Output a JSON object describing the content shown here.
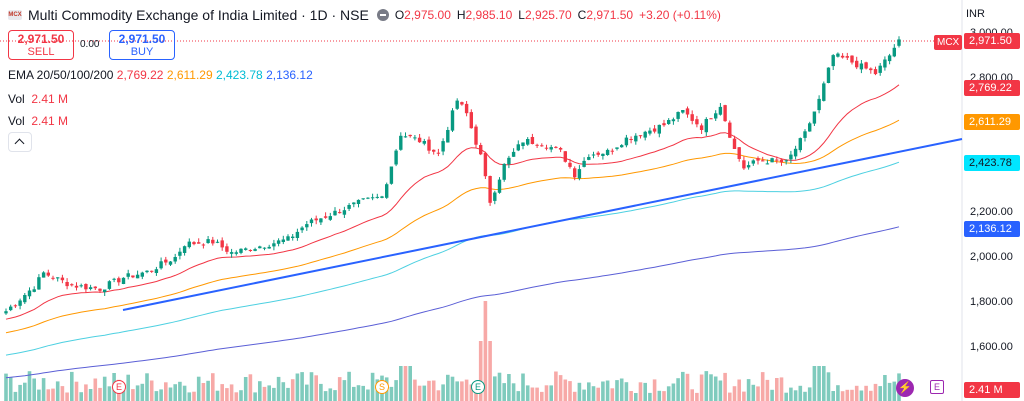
{
  "header": {
    "title": "Multi Commodity Exchange of India Limited · 1D · NSE",
    "ohlc": {
      "o_label": "O",
      "o": "2,975.00",
      "h_label": "H",
      "h": "2,985.10",
      "l_label": "L",
      "l": "2,925.70",
      "c_label": "C",
      "c": "2,971.50",
      "change": "+3.20 (+0.11%)"
    },
    "logo_text": "MCX"
  },
  "trade": {
    "sell_price": "2,971.50",
    "sell_label": "SELL",
    "spread": "0.00",
    "buy_price": "2,971.50",
    "buy_label": "BUY"
  },
  "indicators": {
    "ema_label": "EMA 20/50/100/200",
    "ema20": "2,769.22",
    "ema50": "2,611.29",
    "ema100": "2,423.78",
    "ema200": "2,136.12",
    "vol1_label": "Vol",
    "vol1_value": "2.41 M",
    "vol2_label": "Vol",
    "vol2_value": "2.41 M"
  },
  "currency": "INR",
  "symbol_tag": "MCX",
  "price_labels": {
    "last": "2,971.50",
    "ema20": "2,769.22",
    "ema50": "2,611.29",
    "ema100": "2,423.78",
    "ema200": "2,136.12",
    "volume": "2.41 M"
  },
  "markers": {
    "e": "E",
    "s": "S",
    "flash": "⚡"
  },
  "colors": {
    "up": "#089981",
    "down": "#f23645",
    "ema20": "#f23645",
    "ema50": "#ff9800",
    "ema100": "#4dd0e1",
    "ema200": "#5b5fd6",
    "trend": "#2962ff",
    "ema100_label": "#00e5ff"
  },
  "chart_data": {
    "type": "candlestick",
    "y_axis": {
      "ticks": [
        3000,
        2800,
        2200,
        2000,
        1800,
        1600
      ],
      "tick_labels": [
        "3,000.00",
        "2,800.00",
        "2,200.00",
        "2,000.00",
        "1,800.00",
        "1,600.00"
      ],
      "range": [
        1540,
        3020
      ]
    },
    "close_waypoints": [
      [
        0,
        1760
      ],
      [
        6,
        1870
      ],
      [
        8,
        1930
      ],
      [
        14,
        1875
      ],
      [
        20,
        1860
      ],
      [
        25,
        1910
      ],
      [
        30,
        1935
      ],
      [
        36,
        2000
      ],
      [
        38,
        2060
      ],
      [
        44,
        2070
      ],
      [
        48,
        2020
      ],
      [
        54,
        2050
      ],
      [
        60,
        2080
      ],
      [
        64,
        2150
      ],
      [
        70,
        2200
      ],
      [
        76,
        2250
      ],
      [
        80,
        2270
      ],
      [
        84,
        2550
      ],
      [
        88,
        2520
      ],
      [
        92,
        2460
      ],
      [
        96,
        2700
      ],
      [
        98,
        2640
      ],
      [
        101,
        2450
      ],
      [
        103,
        2250
      ],
      [
        106,
        2410
      ],
      [
        110,
        2520
      ],
      [
        114,
        2510
      ],
      [
        118,
        2470
      ],
      [
        121,
        2370
      ],
      [
        124,
        2460
      ],
      [
        128,
        2470
      ],
      [
        132,
        2530
      ],
      [
        136,
        2560
      ],
      [
        140,
        2590
      ],
      [
        144,
        2650
      ],
      [
        148,
        2580
      ],
      [
        152,
        2680
      ],
      [
        155,
        2480
      ],
      [
        157,
        2400
      ],
      [
        160,
        2430
      ],
      [
        163,
        2430
      ],
      [
        166,
        2420
      ],
      [
        170,
        2550
      ],
      [
        173,
        2700
      ],
      [
        176,
        2900
      ],
      [
        179,
        2880
      ],
      [
        182,
        2850
      ],
      [
        185,
        2820
      ],
      [
        188,
        2900
      ],
      [
        190,
        2971.5
      ]
    ],
    "ema_last": {
      "ema20": 2769.22,
      "ema50": 2611.29,
      "ema100": 2423.78,
      "ema200": 2136.12
    },
    "volume": {
      "last": "2.41 M",
      "spike_index": 102
    }
  }
}
